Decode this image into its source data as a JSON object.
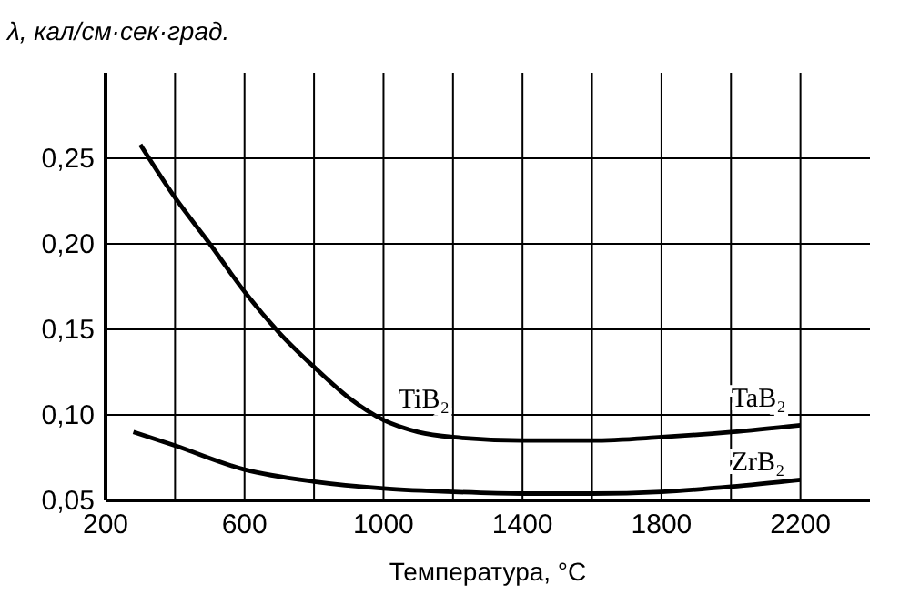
{
  "chart_data": {
    "type": "line",
    "ylabel": "λ, кал/см·сек·град.",
    "xlabel": "Температура, °C",
    "xlim": [
      200,
      2400
    ],
    "ylim": [
      0.05,
      0.3
    ],
    "xticks": [
      200,
      {
        "value": 400,
        "label": null
      },
      600,
      {
        "value": 800,
        "label": null
      },
      1000,
      {
        "value": 1200,
        "label": null
      },
      1400,
      {
        "value": 1600,
        "label": null
      },
      1800,
      {
        "value": 2000,
        "label": null
      },
      2200
    ],
    "yticks": [
      {
        "value": 0.05,
        "label": "0,05"
      },
      {
        "value": 0.1,
        "label": "0,10"
      },
      {
        "value": 0.15,
        "label": "0,15"
      },
      {
        "value": 0.2,
        "label": "0,20"
      },
      {
        "value": 0.25,
        "label": "0,25"
      }
    ],
    "grid": true,
    "marker": "none",
    "line_style": "solid",
    "series": [
      {
        "name": "TiB₂",
        "color": "#000000",
        "x": [
          300,
          400,
          500,
          600,
          700,
          800,
          900,
          1000,
          1100,
          1200,
          1400,
          1600,
          1800,
          2000,
          2200
        ],
        "values": [
          0.258,
          0.227,
          0.2,
          0.172,
          0.148,
          0.128,
          0.11,
          0.097,
          0.09,
          0.087,
          0.085,
          0.085,
          0.087,
          0.09,
          0.094
        ]
      },
      {
        "name": "ZrB₂",
        "color": "#000000",
        "x": [
          280,
          400,
          600,
          800,
          1000,
          1200,
          1400,
          1600,
          1800,
          2000,
          2200
        ],
        "values": [
          0.09,
          0.082,
          0.068,
          0.061,
          0.057,
          0.055,
          0.054,
          0.054,
          0.055,
          0.058,
          0.062
        ]
      }
    ],
    "annotations": [
      "TaB₂"
    ]
  }
}
